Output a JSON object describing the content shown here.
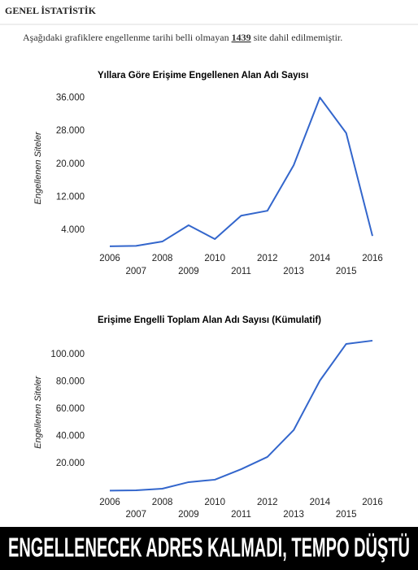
{
  "header": {
    "title": "GENEL İSTATİSTİK"
  },
  "note": {
    "before": "Aşağıdaki grafiklere engellenme tarihi belli olmayan",
    "count": 1439,
    "after": "site dahil edilmemiştir."
  },
  "chart_data": [
    {
      "type": "line",
      "title": "Yıllara Göre Erişime Engellenen Alan Adı Sayısı",
      "y_label": "Engellenen Siteler",
      "categories": [
        "2006",
        "2007",
        "2008",
        "2009",
        "2010",
        "2011",
        "2012",
        "2013",
        "2014",
        "2015",
        "2016"
      ],
      "values": [
        100,
        200,
        1250,
        5200,
        1850,
        7500,
        8700,
        19700,
        36100,
        27500,
        2600
      ],
      "color": "#3366cc",
      "ylim": [
        0,
        38000
      ],
      "yticks": [
        {
          "value": 4000,
          "label": "4.000"
        },
        {
          "value": 12000,
          "label": "12.000"
        },
        {
          "value": 20000,
          "label": "20.000"
        },
        {
          "value": 28000,
          "label": "28.000"
        },
        {
          "value": 36000,
          "label": "36.000"
        }
      ],
      "grid": false
    },
    {
      "type": "line",
      "title": "Erişime Engelli Toplam Alan Adı Sayısı (Kümulatif)",
      "y_label": "Engellenen Siteler",
      "categories": [
        "2006",
        "2007",
        "2008",
        "2009",
        "2010",
        "2011",
        "2012",
        "2013",
        "2014",
        "2015",
        "2016"
      ],
      "values": [
        100,
        300,
        1500,
        6300,
        8100,
        15800,
        24800,
        44500,
        80900,
        107800,
        110200
      ],
      "color": "#3366cc",
      "ylim": [
        0,
        115000
      ],
      "yticks": [
        {
          "value": 20000,
          "label": "20.000"
        },
        {
          "value": 40000,
          "label": "40.000"
        },
        {
          "value": 60000,
          "label": "60.000"
        },
        {
          "value": 80000,
          "label": "80.000"
        },
        {
          "value": 100000,
          "label": "100.000"
        }
      ],
      "grid": false
    }
  ],
  "banner": {
    "text": "ENGELLENECEK ADRES KALMADI, TEMPO DÜŞTÜ"
  }
}
